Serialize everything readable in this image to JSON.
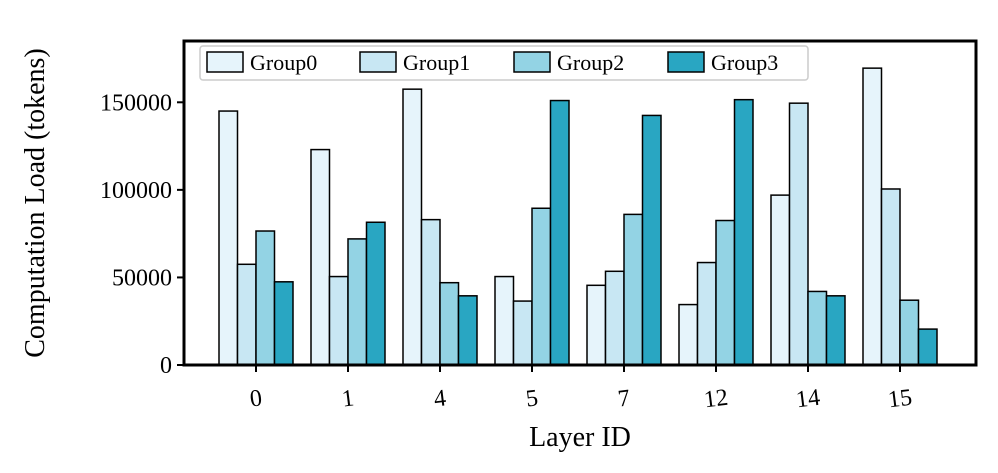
{
  "chart_data": {
    "type": "bar",
    "title": "",
    "xlabel": "Layer ID",
    "ylabel": "Computation Load (tokens)",
    "ylim": [
      0,
      185000
    ],
    "yticks": [
      0,
      50000,
      100000,
      150000
    ],
    "ytick_labels": [
      "0",
      "50000",
      "100000",
      "150000"
    ],
    "categories": [
      "0",
      "1",
      "4",
      "5",
      "7",
      "12",
      "14",
      "15"
    ],
    "legend_position": "top-left",
    "series": [
      {
        "name": "Group0",
        "color": "#e6f4fb",
        "values": [
          145000,
          123000,
          157500,
          50500,
          45500,
          34500,
          97000,
          169500
        ]
      },
      {
        "name": "Group1",
        "color": "#c8e7f3",
        "values": [
          57500,
          50500,
          83000,
          36500,
          53500,
          58500,
          149500,
          100500
        ]
      },
      {
        "name": "Group2",
        "color": "#93d3e4",
        "values": [
          76500,
          72000,
          47000,
          89500,
          86000,
          82500,
          42000,
          37000
        ]
      },
      {
        "name": "Group3",
        "color": "#29a6c2",
        "values": [
          47500,
          81500,
          39500,
          151000,
          142500,
          151500,
          39500,
          20500
        ]
      }
    ]
  }
}
